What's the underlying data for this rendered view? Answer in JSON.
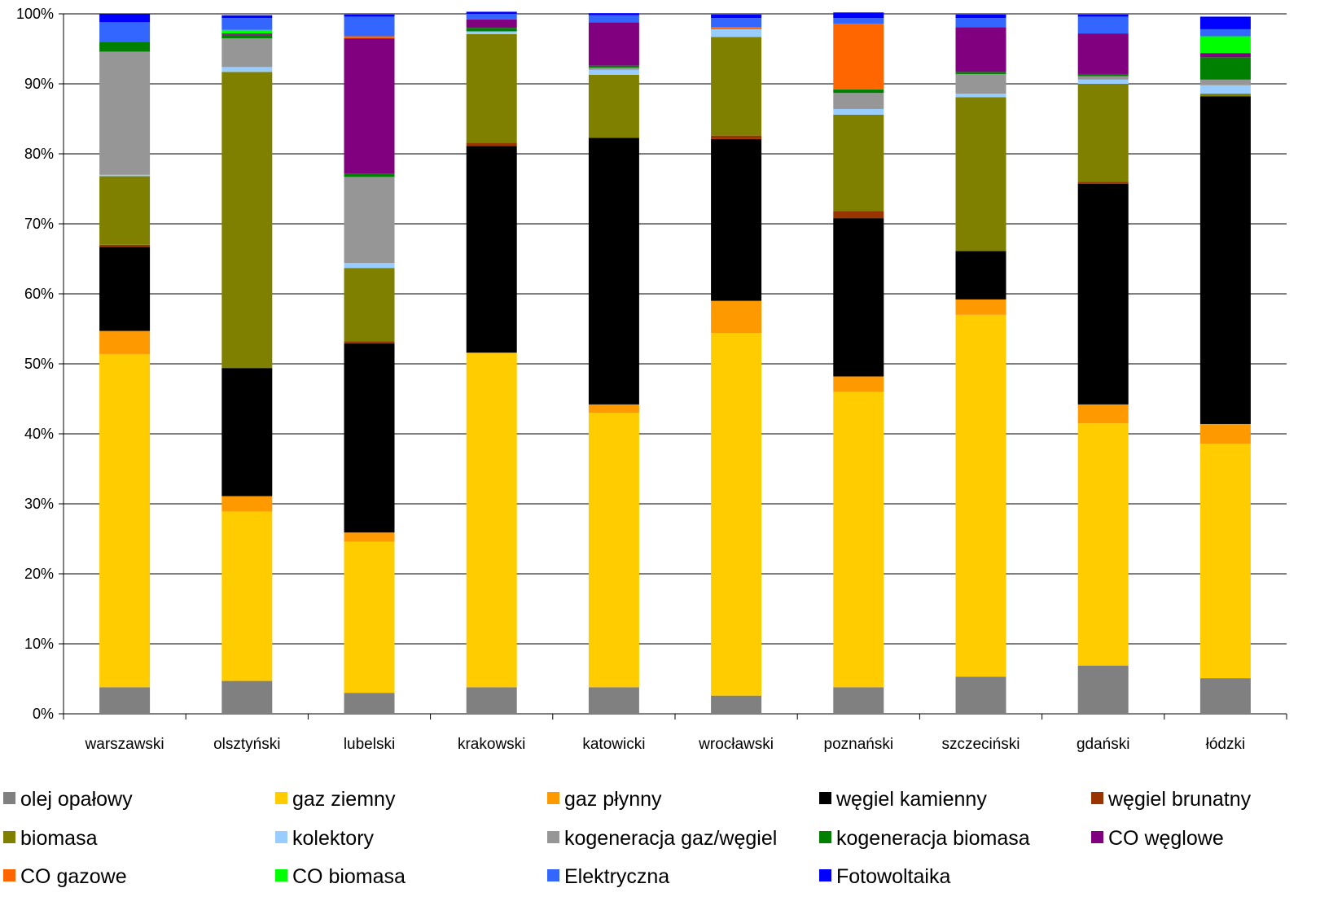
{
  "chart_data": {
    "type": "bar",
    "stacked": true,
    "percent": true,
    "ylim": [
      0,
      100
    ],
    "yticks": [
      "0%",
      "10%",
      "20%",
      "30%",
      "40%",
      "50%",
      "60%",
      "70%",
      "80%",
      "90%",
      "100%"
    ],
    "categories": [
      "warszawski",
      "olsztyński",
      "lubelski",
      "krakowski",
      "katowicki",
      "wrocławski",
      "poznański",
      "szczeciński",
      "gdański",
      "łódzki"
    ],
    "legend_position": "bottom",
    "grid": true,
    "series": [
      {
        "name": "olej opałowy",
        "color": "#808080",
        "values": [
          3.8,
          4.7,
          3.0,
          3.8,
          3.8,
          2.6,
          3.8,
          5.3,
          6.9,
          5.1
        ]
      },
      {
        "name": "gaz ziemny",
        "color": "#FFCC00",
        "values": [
          47.6,
          24.2,
          21.6,
          47.7,
          39.2,
          51.8,
          42.2,
          51.7,
          34.6,
          33.5
        ]
      },
      {
        "name": "gaz płynny",
        "color": "#FF9900",
        "values": [
          3.3,
          2.2,
          1.3,
          0.1,
          1.2,
          4.6,
          2.2,
          2.2,
          2.7,
          2.8
        ]
      },
      {
        "name": "węgiel kamienny",
        "color": "#000000",
        "values": [
          12.0,
          18.3,
          27.0,
          29.5,
          38.1,
          23.1,
          22.6,
          6.9,
          31.5,
          46.8
        ]
      },
      {
        "name": "węgiel brunatny",
        "color": "#993300",
        "values": [
          0.3,
          0.0,
          0.3,
          0.5,
          0.0,
          0.5,
          1.0,
          0.0,
          0.3,
          0.0
        ]
      },
      {
        "name": "biomasa",
        "color": "#808000",
        "values": [
          9.8,
          42.3,
          10.5,
          15.5,
          9.0,
          14.1,
          13.8,
          22.0,
          14.0,
          0.4
        ]
      },
      {
        "name": "kolektory",
        "color": "#99CCFF",
        "values": [
          0.2,
          0.7,
          0.7,
          0.4,
          0.7,
          1.1,
          0.8,
          0.5,
          0.6,
          1.2
        ]
      },
      {
        "name": "kogeneracja gaz/węgiel",
        "color": "#969696",
        "values": [
          17.6,
          4.1,
          12.3,
          0.0,
          0.3,
          0.0,
          2.3,
          2.8,
          0.5,
          0.8
        ]
      },
      {
        "name": "kogeneracja biomasa",
        "color": "#008000",
        "values": [
          1.4,
          0.5,
          0.5,
          0.5,
          0.3,
          0.0,
          0.5,
          0.3,
          0.3,
          3.2
        ]
      },
      {
        "name": "CO węglowe",
        "color": "#800080",
        "values": [
          0.0,
          0.2,
          19.3,
          1.2,
          6.2,
          0.0,
          0.0,
          6.4,
          5.8,
          0.6
        ]
      },
      {
        "name": "CO gazowe",
        "color": "#FF6600",
        "values": [
          0.0,
          0.0,
          0.3,
          0.0,
          0.0,
          0.3,
          9.4,
          0.0,
          0.0,
          0.0
        ]
      },
      {
        "name": "CO biomasa",
        "color": "#00FF00",
        "values": [
          0.0,
          0.5,
          0.0,
          0.0,
          0.0,
          0.0,
          0.0,
          0.0,
          0.0,
          2.4
        ]
      },
      {
        "name": "Elektryczna",
        "color": "#3366FF",
        "values": [
          2.8,
          1.7,
          2.8,
          0.8,
          1.0,
          1.3,
          0.8,
          1.3,
          2.4,
          1.0
        ]
      },
      {
        "name": "Fotowoltaika",
        "color": "#0000FF",
        "values": [
          1.2,
          0.4,
          0.3,
          0.3,
          0.3,
          0.5,
          0.8,
          0.5,
          0.3,
          1.8
        ]
      }
    ]
  }
}
